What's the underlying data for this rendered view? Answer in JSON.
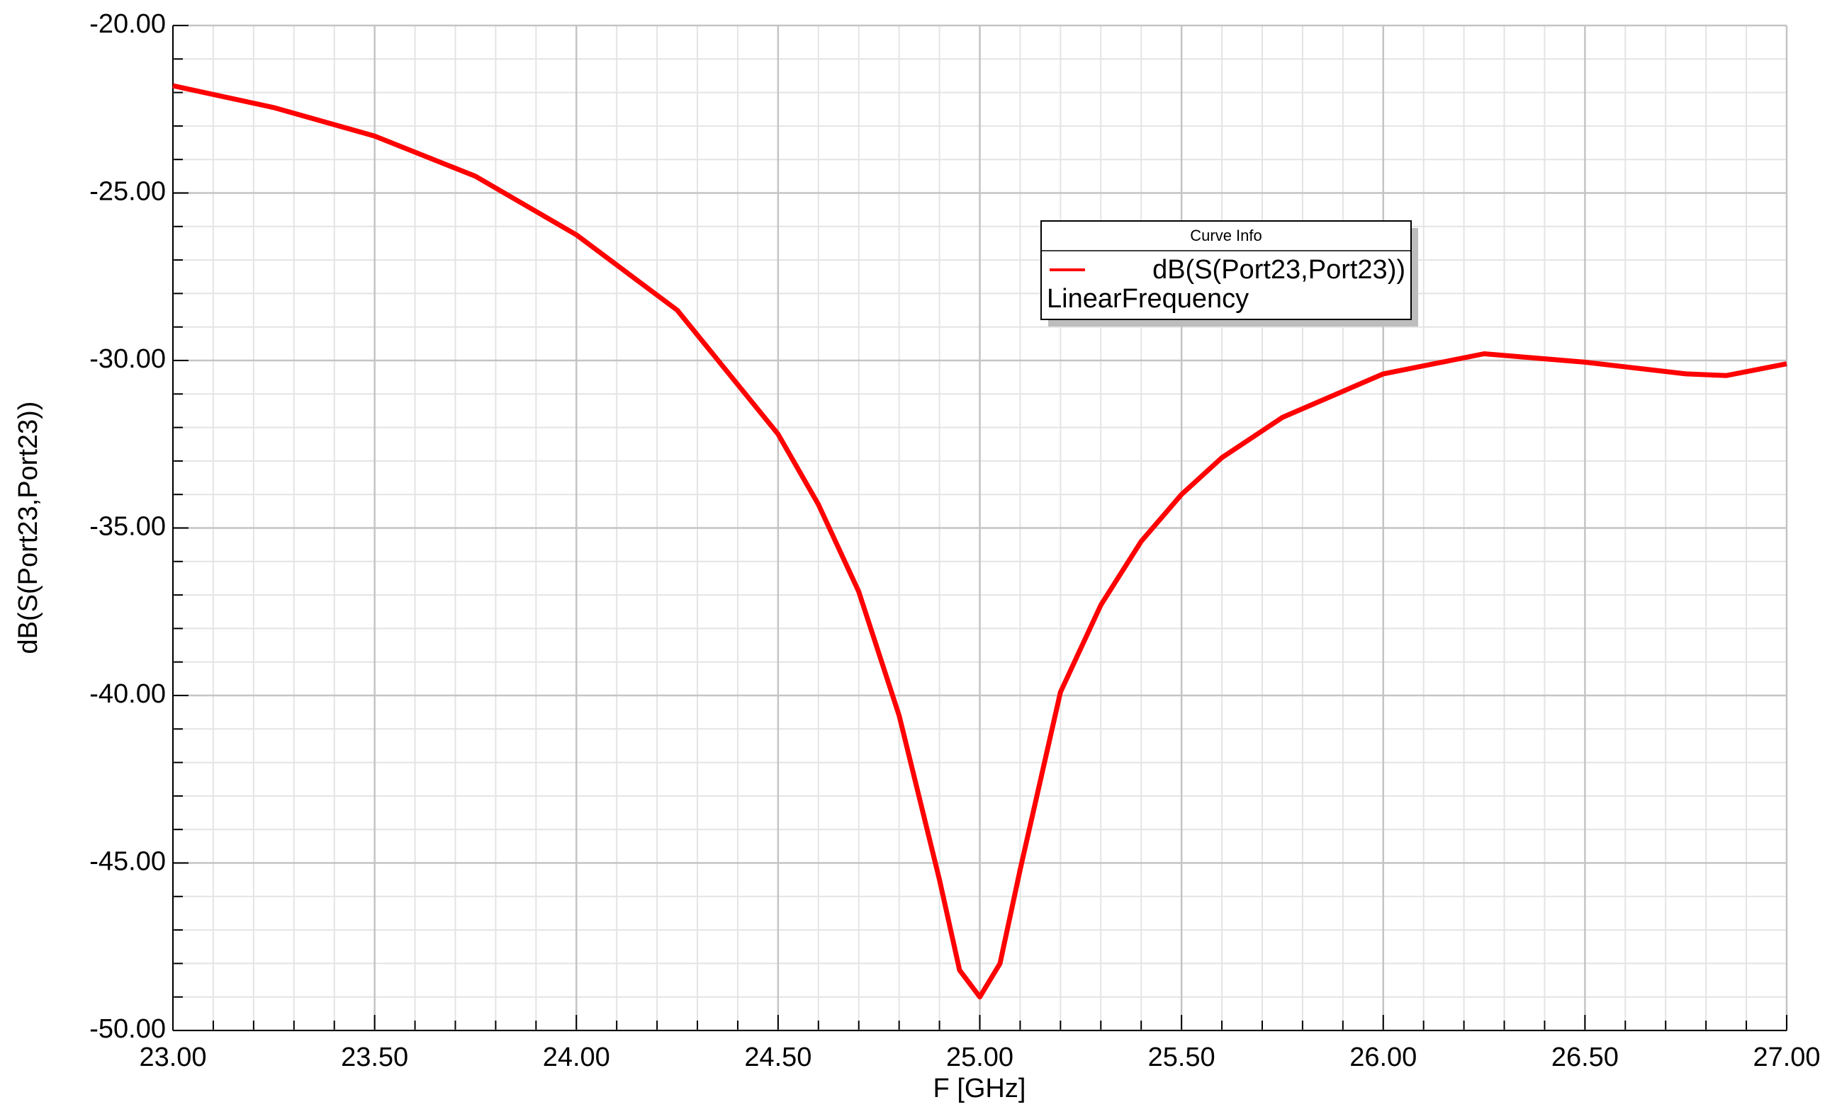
{
  "chart_data": {
    "type": "line",
    "x_label": "F [GHz]",
    "y_label": "dB(S(Port23,Port23))",
    "legend_title": "Curve Info",
    "legend_subtitle": "LinearFrequency",
    "grid": true,
    "xlim": [
      23,
      27
    ],
    "ylim": [
      -50,
      -20
    ],
    "xticks": [
      {
        "value": 23,
        "label": "23.00"
      },
      {
        "value": 23.5,
        "label": "23.50"
      },
      {
        "value": 24,
        "label": "24.00"
      },
      {
        "value": 24.5,
        "label": "24.50"
      },
      {
        "value": 25,
        "label": "25.00"
      },
      {
        "value": 25.5,
        "label": "25.50"
      },
      {
        "value": 26,
        "label": "26.00"
      },
      {
        "value": 26.5,
        "label": "26.50"
      },
      {
        "value": 27,
        "label": "27.00"
      }
    ],
    "yticks": [
      {
        "value": -50,
        "label": "-50.00"
      },
      {
        "value": -45,
        "label": "-45.00"
      },
      {
        "value": -40,
        "label": "-40.00"
      },
      {
        "value": -35,
        "label": "-35.00"
      },
      {
        "value": -30,
        "label": "-30.00"
      },
      {
        "value": -25,
        "label": "-25.00"
      },
      {
        "value": -20,
        "label": "-20.00"
      }
    ],
    "x": [
      23.0,
      23.25,
      23.5,
      23.75,
      24.0,
      24.25,
      24.5,
      24.6,
      24.7,
      24.8,
      24.9,
      24.95,
      25.0,
      25.05,
      25.1,
      25.2,
      25.3,
      25.4,
      25.5,
      25.6,
      25.75,
      26.0,
      26.25,
      26.5,
      26.75,
      26.85,
      27.0
    ],
    "series": [
      {
        "name": "dB(S(Port23,Port23))",
        "color": "#ff0000",
        "values": [
          -21.8,
          -22.45,
          -23.3,
          -24.5,
          -26.25,
          -28.5,
          -32.2,
          -34.3,
          -36.9,
          -40.6,
          -45.5,
          -48.2,
          -49.0,
          -48.0,
          -45.2,
          -39.9,
          -37.3,
          -35.4,
          -34.0,
          -32.9,
          -31.7,
          -30.4,
          -29.8,
          -30.05,
          -30.4,
          -30.45,
          -30.1
        ]
      }
    ]
  }
}
